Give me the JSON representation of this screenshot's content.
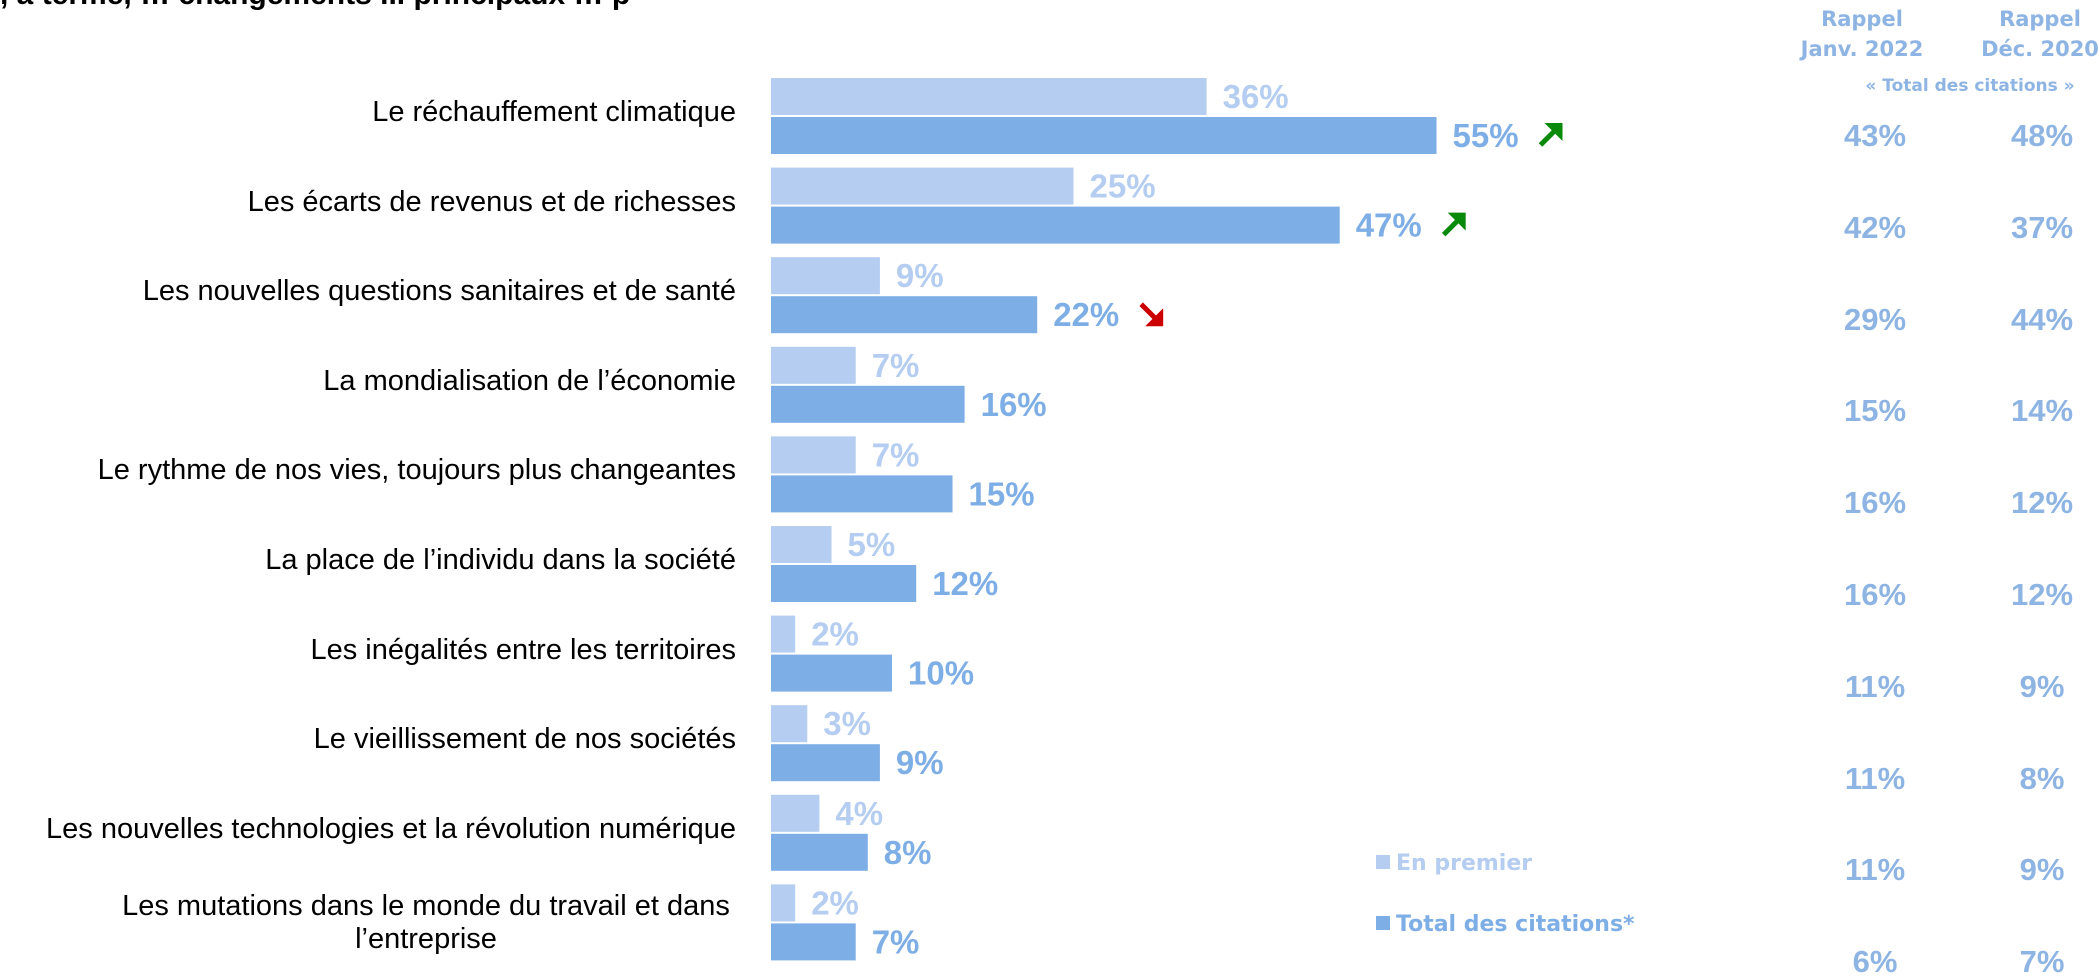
{
  "title_fragment": ", à terme, … changements ... principaux … p",
  "column_headers": [
    {
      "line1": "Rappel",
      "line2": "Janv. 2022"
    },
    {
      "line1": "Rappel",
      "line2": "Déc. 2020"
    }
  ],
  "column_subheader": "« Total des citations »",
  "legend": [
    {
      "label": "En premier",
      "color": "#b4cdf0"
    },
    {
      "label": "Total des citations*",
      "color": "#7eaee6"
    }
  ],
  "colors": {
    "first": "#b4cdf0",
    "total": "#7eaee6",
    "up_arrow": "#0a8a0a",
    "down_arrow": "#cc0000"
  },
  "chart_data": {
    "type": "bar",
    "orientation": "horizontal",
    "categories": [
      "Le réchauffement climatique",
      "Les écarts de revenus et de richesses",
      "Les nouvelles questions sanitaires et de santé",
      "La mondialisation de l’économie",
      "Le rythme de nos vies, toujours plus changeantes",
      "La place de l’individu dans la société",
      "Les inégalités entre les territoires",
      "Le vieillissement de nos sociétés",
      "Les nouvelles technologies et la révolution numérique",
      "Les mutations dans le monde du travail et dans l’entreprise"
    ],
    "series": [
      {
        "name": "En premier",
        "values": [
          36,
          25,
          9,
          7,
          7,
          5,
          2,
          3,
          4,
          2
        ],
        "labels": [
          "36%",
          "25%",
          "9%",
          "7%",
          "7%",
          "5%",
          "2%",
          "3%",
          "4%",
          "2%"
        ]
      },
      {
        "name": "Total des citations*",
        "values": [
          55,
          47,
          22,
          16,
          15,
          12,
          10,
          9,
          8,
          7
        ],
        "labels": [
          "55%",
          "47%",
          "22%",
          "16%",
          "15%",
          "12%",
          "10%",
          "9%",
          "8%",
          "7%"
        ]
      }
    ],
    "trend_arrows": [
      "up",
      "up",
      "down",
      null,
      null,
      null,
      null,
      null,
      null,
      null
    ],
    "recall_janv_2022": [
      "43%",
      "42%",
      "29%",
      "15%",
      "16%",
      "16%",
      "11%",
      "11%",
      "11%",
      "6%"
    ],
    "recall_dec_2020": [
      "48%",
      "37%",
      "44%",
      "14%",
      "12%",
      "12%",
      "9%",
      "8%",
      "9%",
      "7%"
    ],
    "unit": "%",
    "xlim": [
      0,
      100
    ]
  }
}
